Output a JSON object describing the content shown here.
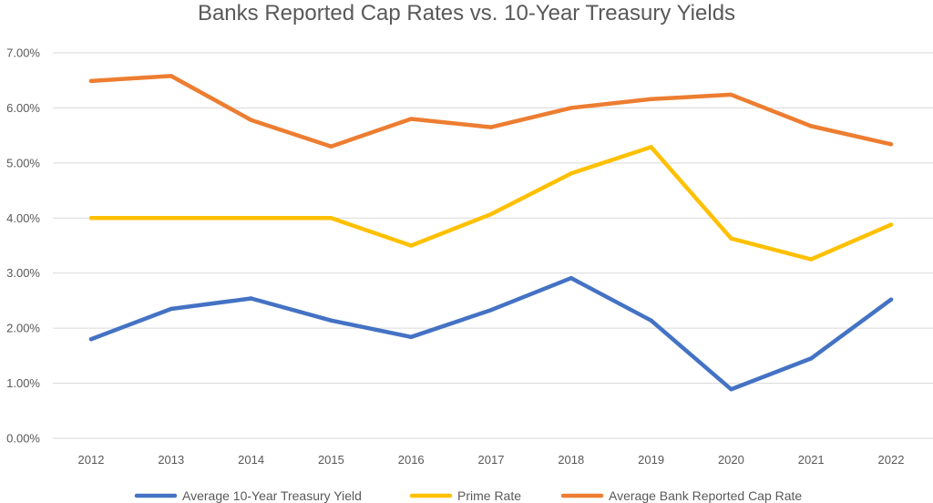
{
  "chart_data": {
    "type": "line",
    "title": "Banks Reported Cap Rates vs. 10-Year Treasury Yields",
    "xlabel": "",
    "ylabel": "",
    "categories": [
      "2012",
      "2013",
      "2014",
      "2015",
      "2016",
      "2017",
      "2018",
      "2019",
      "2020",
      "2021",
      "2022"
    ],
    "y_ticks": [
      "0.00%",
      "1.00%",
      "2.00%",
      "3.00%",
      "4.00%",
      "5.00%",
      "6.00%",
      "7.00%"
    ],
    "ylim": [
      0,
      7
    ],
    "grid": true,
    "legend_position": "bottom",
    "series": [
      {
        "name": "Average 10-Year Treasury Yield",
        "color": "#4472C4",
        "values": [
          1.8,
          2.35,
          2.54,
          2.14,
          1.84,
          2.33,
          2.91,
          2.14,
          0.89,
          1.45,
          2.52
        ]
      },
      {
        "name": "Prime Rate",
        "color": "#FFC000",
        "values": [
          4.0,
          4.0,
          4.0,
          4.0,
          3.5,
          4.07,
          4.81,
          5.29,
          3.63,
          3.25,
          3.88
        ]
      },
      {
        "name": "Average Bank Reported Cap Rate",
        "color": "#ED7D31",
        "values": [
          6.49,
          6.58,
          5.78,
          5.3,
          5.8,
          5.65,
          6.0,
          6.16,
          6.24,
          5.67,
          5.34
        ]
      }
    ]
  }
}
